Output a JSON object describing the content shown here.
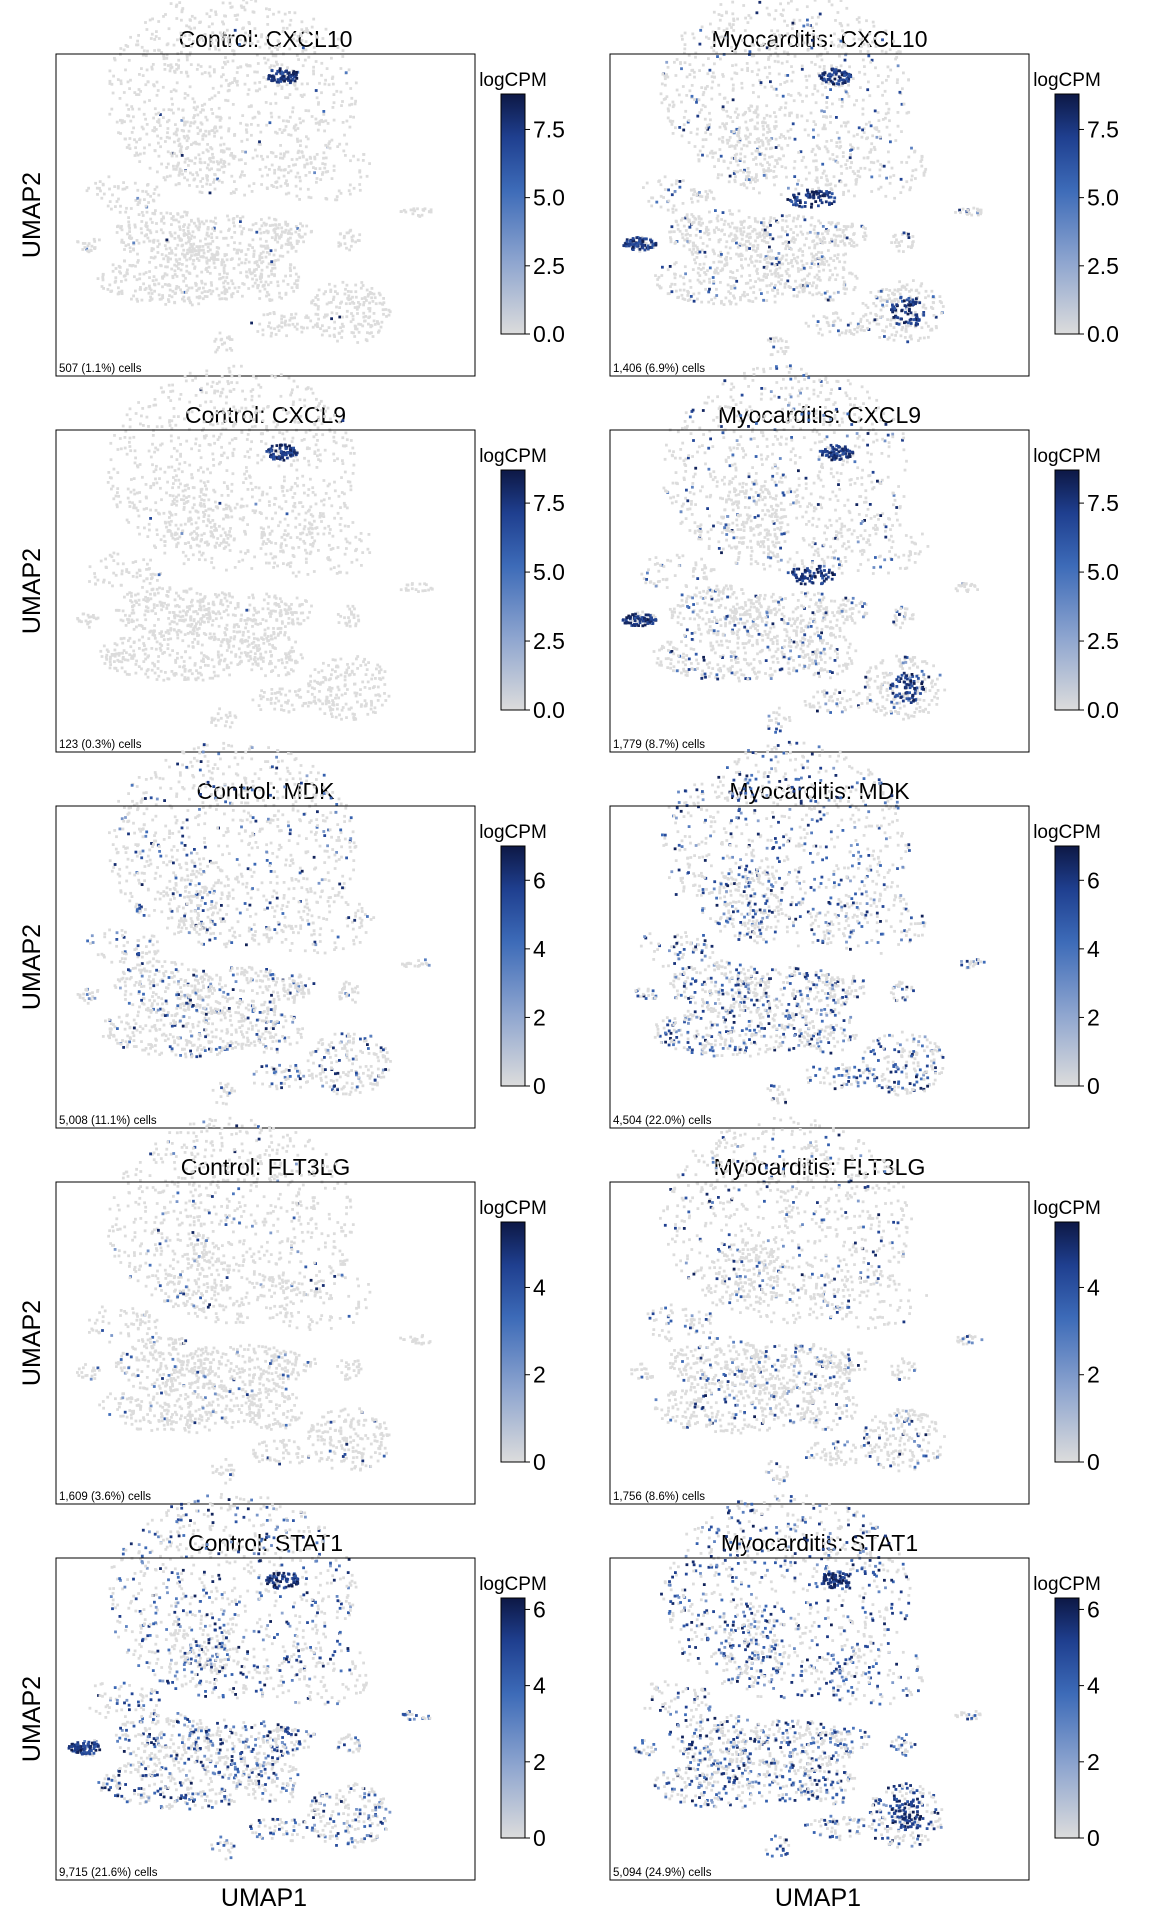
{
  "figure": {
    "xlabel": "UMAP1",
    "ylabel": "UMAP2",
    "colorbar_label": "logCPM",
    "colormap": [
      "#dcdcdc",
      "#8ea5cf",
      "#3d6bb8",
      "#1f3f8f",
      "#0d1845"
    ],
    "background_color": "#dcdcdc"
  },
  "chart_data": [
    {
      "type": "scatter",
      "title": "Control: CXCL10",
      "count_text": "507 (1.1%) cells",
      "frac": 0.011,
      "colorbar": {
        "ticks": [
          "0.0",
          "2.5",
          "5.0",
          "7.5"
        ],
        "tick_values": [
          0,
          2.5,
          5,
          7.5
        ],
        "max": 8.8
      },
      "hotspots": [
        "top"
      ],
      "x": [],
      "y": []
    },
    {
      "type": "scatter",
      "title": "Myocarditis: CXCL10",
      "count_text": "1,406 (6.9%) cells",
      "frac": 0.069,
      "colorbar": {
        "ticks": [
          "0.0",
          "2.5",
          "5.0",
          "7.5"
        ],
        "tick_values": [
          0,
          2.5,
          5,
          7.5
        ],
        "max": 8.8
      },
      "hotspots": [
        "top",
        "mid",
        "left",
        "bottom"
      ],
      "x": [],
      "y": []
    },
    {
      "type": "scatter",
      "title": "Control: CXCL9",
      "count_text": "123 (0.3%) cells",
      "frac": 0.003,
      "colorbar": {
        "ticks": [
          "0.0",
          "2.5",
          "5.0",
          "7.5"
        ],
        "tick_values": [
          0,
          2.5,
          5,
          7.5
        ],
        "max": 8.7
      },
      "hotspots": [
        "top"
      ],
      "x": [],
      "y": []
    },
    {
      "type": "scatter",
      "title": "Myocarditis: CXCL9",
      "count_text": "1,779 (8.7%) cells",
      "frac": 0.087,
      "colorbar": {
        "ticks": [
          "0.0",
          "2.5",
          "5.0",
          "7.5"
        ],
        "tick_values": [
          0,
          2.5,
          5,
          7.5
        ],
        "max": 8.7
      },
      "hotspots": [
        "top",
        "mid",
        "left",
        "bottom"
      ],
      "x": [],
      "y": []
    },
    {
      "type": "scatter",
      "title": "Control: MDK",
      "count_text": "5,008 (11.1%) cells",
      "frac": 0.111,
      "colorbar": {
        "ticks": [
          "0",
          "2",
          "4",
          "6"
        ],
        "tick_values": [
          0,
          2,
          4,
          6
        ],
        "max": 7.0
      },
      "hotspots": [],
      "x": [],
      "y": []
    },
    {
      "type": "scatter",
      "title": "Myocarditis: MDK",
      "count_text": "4,504 (22.0%) cells",
      "frac": 0.22,
      "colorbar": {
        "ticks": [
          "0",
          "2",
          "4",
          "6"
        ],
        "tick_values": [
          0,
          2,
          4,
          6
        ],
        "max": 7.0
      },
      "hotspots": [],
      "x": [],
      "y": []
    },
    {
      "type": "scatter",
      "title": "Control: FLT3LG",
      "count_text": "1,609 (3.6%) cells",
      "frac": 0.036,
      "colorbar": {
        "ticks": [
          "0",
          "2",
          "4"
        ],
        "tick_values": [
          0,
          2,
          4
        ],
        "max": 5.5
      },
      "hotspots": [],
      "x": [],
      "y": []
    },
    {
      "type": "scatter",
      "title": "Myocarditis: FLT3LG",
      "count_text": "1,756 (8.6%) cells",
      "frac": 0.086,
      "colorbar": {
        "ticks": [
          "0",
          "2",
          "4"
        ],
        "tick_values": [
          0,
          2,
          4
        ],
        "max": 5.5
      },
      "hotspots": [],
      "x": [],
      "y": []
    },
    {
      "type": "scatter",
      "title": "Control: STAT1",
      "count_text": "9,715 (21.6%) cells",
      "frac": 0.216,
      "colorbar": {
        "ticks": [
          "0",
          "2",
          "4",
          "6"
        ],
        "tick_values": [
          0,
          2,
          4,
          6
        ],
        "max": 6.3
      },
      "hotspots": [
        "top",
        "left"
      ],
      "x": [],
      "y": []
    },
    {
      "type": "scatter",
      "title": "Myocarditis: STAT1",
      "count_text": "5,094 (24.9%) cells",
      "frac": 0.249,
      "colorbar": {
        "ticks": [
          "0",
          "2",
          "4",
          "6"
        ],
        "tick_values": [
          0,
          2,
          4,
          6
        ],
        "max": 6.3
      },
      "hotspots": [
        "top",
        "bottom"
      ],
      "x": [],
      "y": []
    }
  ]
}
